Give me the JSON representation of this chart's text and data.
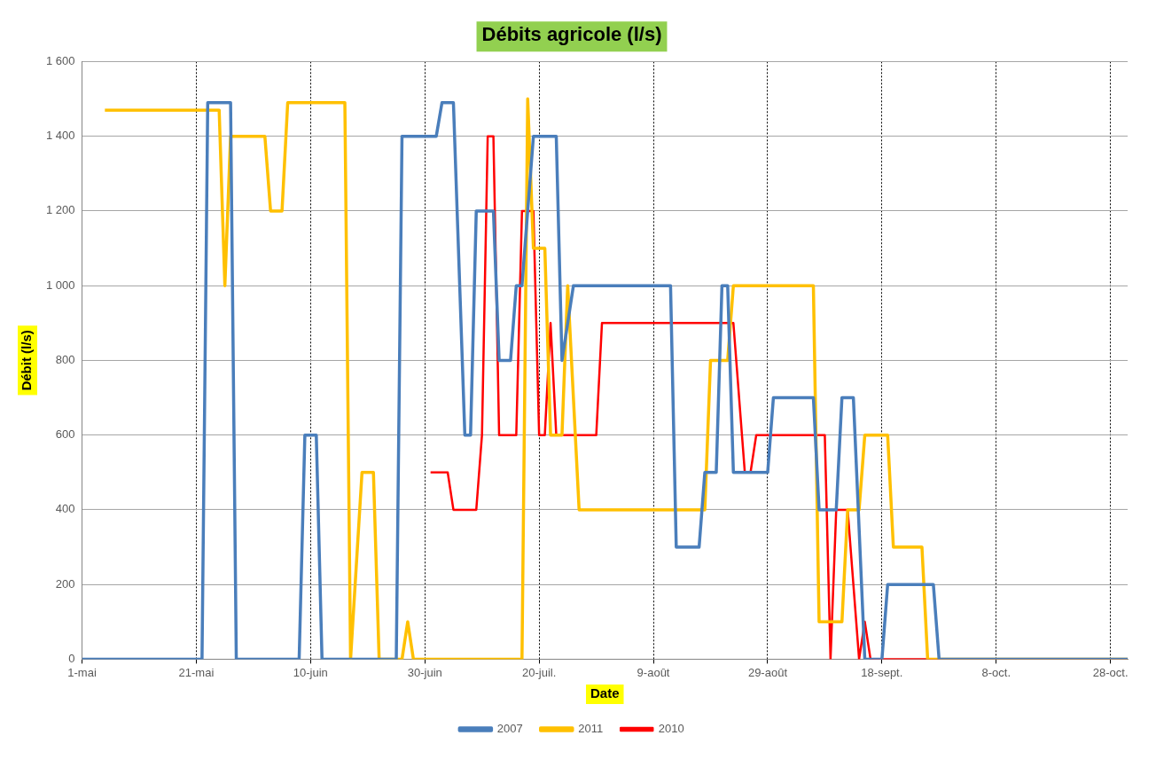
{
  "chart_data": {
    "type": "line",
    "title": "Débits agricole (l/s)",
    "xlabel": "Date",
    "ylabel": "Débit (l/s)",
    "xlim": [
      "--05-01",
      "--10-31"
    ],
    "xticks": [
      {
        "value": "--05-01",
        "label": "1-mai"
      },
      {
        "value": "--05-21",
        "label": "21-mai"
      },
      {
        "value": "--06-10",
        "label": "10-juin"
      },
      {
        "value": "--06-30",
        "label": "30-juin"
      },
      {
        "value": "--07-20",
        "label": "20-juil."
      },
      {
        "value": "--08-09",
        "label": "9-août"
      },
      {
        "value": "--08-29",
        "label": "29-août"
      },
      {
        "value": "--09-18",
        "label": "18-sept."
      },
      {
        "value": "--10-08",
        "label": "8-oct."
      },
      {
        "value": "--10-28",
        "label": "28-oct."
      }
    ],
    "ylim": [
      0,
      1600
    ],
    "yticks": [
      0,
      200,
      400,
      600,
      800,
      {
        "value": 1000,
        "label": "1 000"
      },
      {
        "value": 1200,
        "label": "1 200"
      },
      {
        "value": 1400,
        "label": "1 400"
      },
      {
        "value": 1600,
        "label": "1 600"
      }
    ],
    "grid": true,
    "legend": "bottom",
    "marker": "none",
    "line_style": "solid",
    "series": [
      {
        "name": "2007",
        "color": "#4a7ebb",
        "x": [
          "--05-01",
          "--05-22",
          "--05-23",
          "--05-27",
          "--05-28",
          "--06-08",
          "--06-09",
          "--06-11",
          "--06-12",
          "--06-25",
          "--06-26",
          "--07-02",
          "--07-03",
          "--07-05",
          "--07-07",
          "--07-08",
          "--07-09",
          "--07-12",
          "--07-13",
          "--07-15",
          "--07-16",
          "--07-17",
          "--07-19",
          "--07-23",
          "--07-24",
          "--07-26",
          "--08-12",
          "--08-13",
          "--08-17",
          "--08-18",
          "--08-20",
          "--08-21",
          "--08-22",
          "--08-23",
          "--08-29",
          "--08-30",
          "--09-06",
          "--09-07",
          "--09-10",
          "--09-11",
          "--09-13",
          "--09-15",
          "--09-18",
          "--09-19",
          "--09-27",
          "--09-28",
          "--10-31"
        ],
        "values": [
          0,
          0,
          1490,
          1490,
          0,
          0,
          600,
          600,
          0,
          0,
          1400,
          1400,
          1490,
          1490,
          600,
          600,
          1200,
          1200,
          800,
          800,
          1000,
          1000,
          1400,
          1400,
          800,
          1000,
          1000,
          300,
          300,
          500,
          500,
          1000,
          1000,
          500,
          500,
          700,
          700,
          400,
          400,
          700,
          700,
          0,
          0,
          200,
          200,
          0,
          0
        ]
      },
      {
        "name": "2011",
        "color": "#ffc000",
        "x": [
          "--05-05",
          "--05-25",
          "--05-26",
          "--05-27",
          "--06-02",
          "--06-03",
          "--06-05",
          "--06-06",
          "--06-16",
          "--06-17",
          "--06-19",
          "--06-21",
          "--06-22",
          "--06-26",
          "--06-27",
          "--06-28",
          "--07-17",
          "--07-18",
          "--07-19",
          "--07-21",
          "--07-22",
          "--07-24",
          "--07-25",
          "--07-27",
          "--08-18",
          "--08-19",
          "--08-22",
          "--08-23",
          "--09-06",
          "--09-07",
          "--09-11",
          "--09-12",
          "--09-14",
          "--09-15",
          "--09-19",
          "--09-20",
          "--09-25",
          "--09-26",
          "--10-31"
        ],
        "values": [
          1470,
          1470,
          1000,
          1400,
          1400,
          1200,
          1200,
          1490,
          1490,
          0,
          500,
          500,
          0,
          0,
          100,
          0,
          0,
          1500,
          1100,
          1100,
          600,
          600,
          1000,
          400,
          400,
          800,
          800,
          1000,
          1000,
          100,
          100,
          400,
          400,
          600,
          600,
          300,
          300,
          0,
          0
        ]
      },
      {
        "name": "2010",
        "color": "#ff0000",
        "x": [
          "--07-01",
          "--07-04",
          "--07-05",
          "--07-09",
          "--07-10",
          "--07-11",
          "--07-12",
          "--07-13",
          "--07-16",
          "--07-17",
          "--07-19",
          "--07-20",
          "--07-21",
          "--07-22",
          "--07-23",
          "--07-30",
          "--07-31",
          "--08-23",
          "--08-25",
          "--08-26",
          "--08-27",
          "--09-08",
          "--09-09",
          "--09-10",
          "--09-12",
          "--09-14",
          "--09-15",
          "--09-16",
          "--10-31"
        ],
        "values": [
          500,
          500,
          400,
          400,
          600,
          1400,
          1400,
          600,
          600,
          1200,
          1200,
          600,
          600,
          900,
          600,
          600,
          900,
          900,
          500,
          500,
          600,
          600,
          0,
          400,
          400,
          0,
          100,
          0,
          0
        ]
      }
    ]
  }
}
